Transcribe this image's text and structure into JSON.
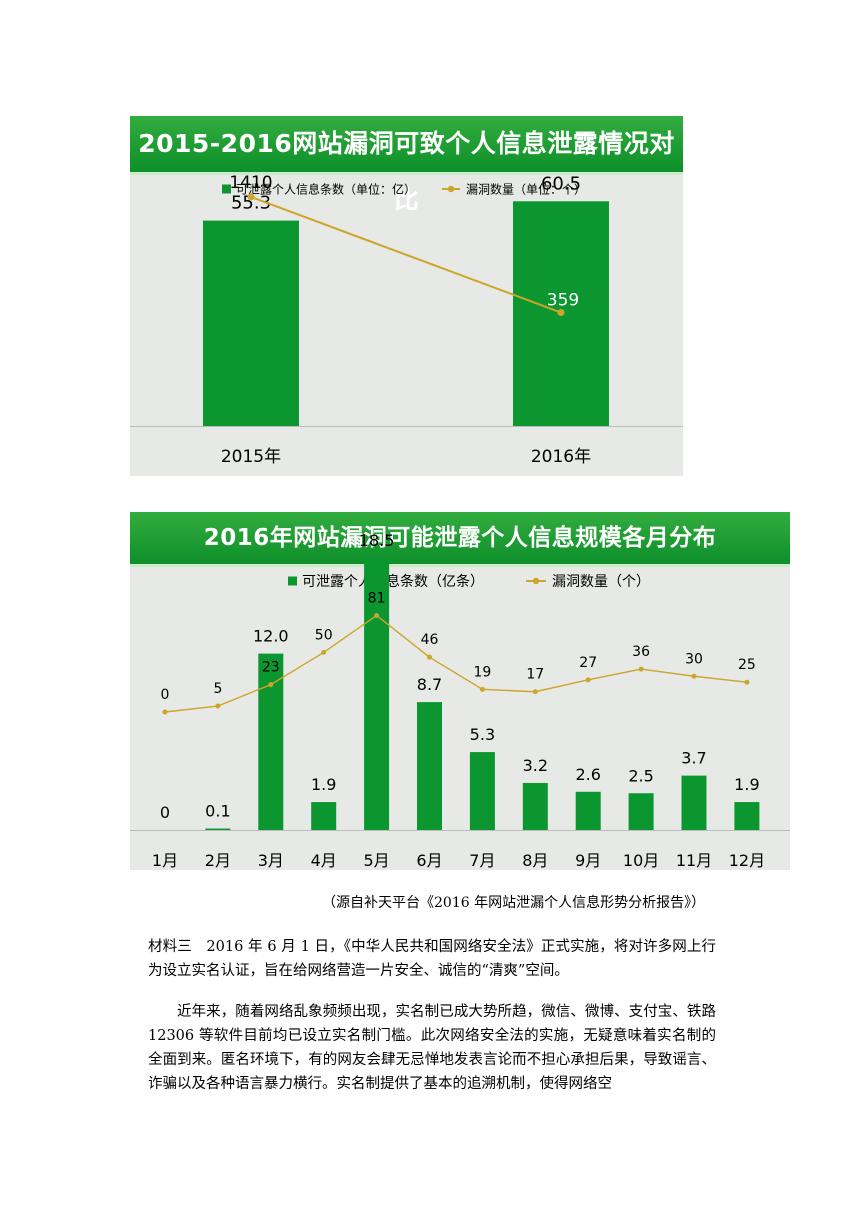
{
  "chart_data": [
    {
      "type": "bar",
      "title": "2015-2016网站漏洞可致个人信息泄露情况对比",
      "categories": [
        "2015年",
        "2016年"
      ],
      "series": [
        {
          "name": "可泄露个人信息条数（单位：亿）",
          "type": "bar",
          "values": [
            55.3,
            60.5
          ],
          "labels": [
            "55.3",
            "60.5"
          ],
          "color": "#0b9630"
        },
        {
          "name": "漏洞数量（单位：个）",
          "type": "line",
          "values": [
            1410,
            359
          ],
          "labels": [
            "1410",
            "359"
          ],
          "color": "#cda52a"
        }
      ],
      "bar_ylim": [
        0,
        70
      ],
      "line_ylim": [
        0,
        1600
      ],
      "legend_position": "top",
      "grid": false
    },
    {
      "type": "bar",
      "title": "2016年网站漏洞可能泄露个人信息规模各月分布",
      "categories": [
        "1月",
        "2月",
        "3月",
        "4月",
        "5月",
        "6月",
        "7月",
        "8月",
        "9月",
        "10月",
        "11月",
        "12月"
      ],
      "series": [
        {
          "name": "可泄露个人信息条数（亿条）",
          "type": "bar",
          "values": [
            0,
            0.1,
            12.0,
            1.9,
            18.5,
            8.7,
            5.3,
            3.2,
            2.6,
            2.5,
            3.7,
            1.9
          ],
          "labels": [
            "0",
            "0.1",
            "12.0",
            "1.9",
            "18.5",
            "8.7",
            "5.3",
            "3.2",
            "2.6",
            "2.5",
            "3.7",
            "1.9"
          ],
          "color": "#0b9630"
        },
        {
          "name": "漏洞数量（个）",
          "type": "line",
          "values": [
            0,
            5,
            23,
            50,
            81,
            46,
            19,
            17,
            27,
            36,
            30,
            25
          ],
          "labels": [
            "0",
            "5",
            "23",
            "50",
            "81",
            "46",
            "19",
            "17",
            "27",
            "36",
            "30",
            "25"
          ],
          "color": "#cda52a"
        }
      ],
      "bar_ylim": [
        0,
        20
      ],
      "line_ylim": [
        0,
        120
      ],
      "legend_position": "top",
      "grid": false
    }
  ],
  "source": "（源自补天平台《2016 年网站泄漏个人信息形势分析报告》）",
  "paragraphs": [
    "材料三　2016 年 6 月 1 日，《中华人民共和国网络安全法》正式实施，将对许多网上行为设立实名认证，旨在给网络营造一片安全、诚信的“清爽”空间。",
    "近年来，随着网络乱象频频出现，实名制已成大势所趋，微信、微博、支付宝、铁路 12306 等软件目前均已设立实名制门槛。此次网络安全法的实施，无疑意味着实名制的全面到来。匿名环境下，有的网友会肆无忌惮地发表言论而不担心承担后果，导致谣言、诈骗以及各种语言暴力横行。实名制提供了基本的追溯机制，使得网络空"
  ]
}
